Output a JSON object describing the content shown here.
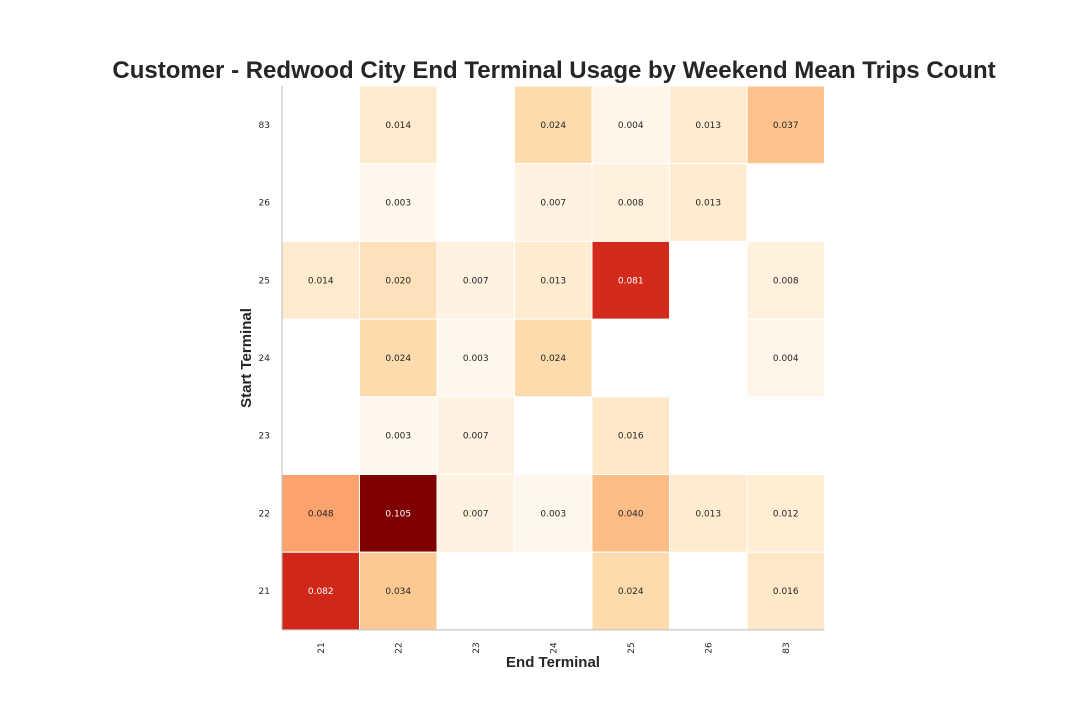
{
  "chart_data": {
    "type": "heatmap",
    "title": "Customer - Redwood City End Terminal Usage by Weekend Mean Trips Count",
    "xlabel": "End Terminal",
    "ylabel": "Start Terminal",
    "x_categories": [
      "21",
      "22",
      "23",
      "24",
      "25",
      "26",
      "83"
    ],
    "y_categories": [
      "83",
      "26",
      "25",
      "24",
      "23",
      "22",
      "21"
    ],
    "values": [
      [
        null,
        0.014,
        null,
        0.024,
        0.004,
        0.013,
        0.037
      ],
      [
        null,
        0.003,
        null,
        0.007,
        0.008,
        0.013,
        null
      ],
      [
        0.014,
        0.02,
        0.007,
        0.013,
        0.081,
        null,
        0.008
      ],
      [
        null,
        0.024,
        0.003,
        0.024,
        null,
        null,
        0.004
      ],
      [
        null,
        0.003,
        0.007,
        null,
        0.016,
        null,
        null
      ],
      [
        0.048,
        0.105,
        0.007,
        0.003,
        0.04,
        0.013,
        0.012
      ],
      [
        0.082,
        0.034,
        null,
        null,
        0.024,
        null,
        0.016
      ]
    ],
    "value_format": "0.000",
    "colormap": "OrRd",
    "vmin": 0.003,
    "vmax": 0.105,
    "grid": false,
    "legend": "none"
  }
}
